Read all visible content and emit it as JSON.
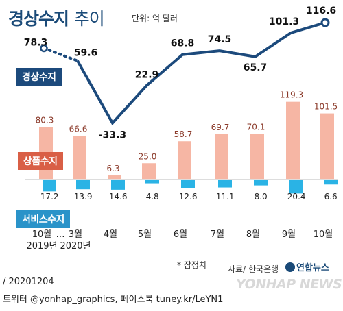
{
  "title": "경상수지",
  "title_suffix": "추이",
  "unit": "단위: 억 달러",
  "series_labels": {
    "current_account": "경상수지",
    "goods": "상품수지",
    "services": "서비스수지"
  },
  "colors": {
    "current_account": "#1c4a7c",
    "goods_bar": "#f6b6a4",
    "goods_text": "#8b3a2a",
    "services_bar": "#2ab3e5",
    "axis": "#bbbbbb",
    "dotted": "#1c4a7c"
  },
  "chart_data": {
    "type": "bar",
    "categories": [
      "10월\n2019년",
      "3월\n2020년",
      "4월",
      "5월",
      "6월",
      "7월",
      "8월",
      "9월",
      "10월"
    ],
    "category_lines": [
      [
        "10월",
        "2019년"
      ],
      [
        "3월",
        "2020년"
      ],
      [
        "4월"
      ],
      [
        "5월"
      ],
      [
        "6월"
      ],
      [
        "7월"
      ],
      [
        "8월"
      ],
      [
        "9월"
      ],
      [
        "10월"
      ]
    ],
    "gap_marker": "…",
    "series": [
      {
        "name": "경상수지",
        "type": "line",
        "values": [
          78.3,
          59.6,
          -33.3,
          22.9,
          68.8,
          74.5,
          65.7,
          101.3,
          116.6
        ]
      },
      {
        "name": "상품수지",
        "type": "bar",
        "values": [
          80.3,
          66.6,
          6.3,
          25.0,
          58.7,
          69.7,
          70.1,
          119.3,
          101.5
        ]
      },
      {
        "name": "서비스수지",
        "type": "bar",
        "values": [
          -17.2,
          -13.9,
          -14.6,
          -4.8,
          -12.6,
          -11.1,
          -8.0,
          -20.4,
          -6.6
        ]
      }
    ],
    "line_labels": [
      "78.3",
      "59.6",
      "-33.3",
      "22.9",
      "68.8",
      "74.5",
      "65.7",
      "101.3",
      "116.6"
    ],
    "goods_labels": [
      "80.3",
      "66.6",
      "6.3",
      "25.0",
      "58.7",
      "69.7",
      "70.1",
      "119.3",
      "101.5"
    ],
    "services_labels": [
      "-17.2",
      "-13.9",
      "-14.6",
      "-4.8",
      "-12.6",
      "-11.1",
      "-8.0",
      "-20.4",
      "-6.6"
    ]
  },
  "footnote": "* 잠정치",
  "source": "자료/ 한국은행",
  "brand": "연합뉴스",
  "credit_date": "/ 20201204",
  "credit_sns": "트위터 @yonhap_graphics, 페이스북 tuney.kr/LeYN1",
  "watermark": "YONHAP NEWS"
}
